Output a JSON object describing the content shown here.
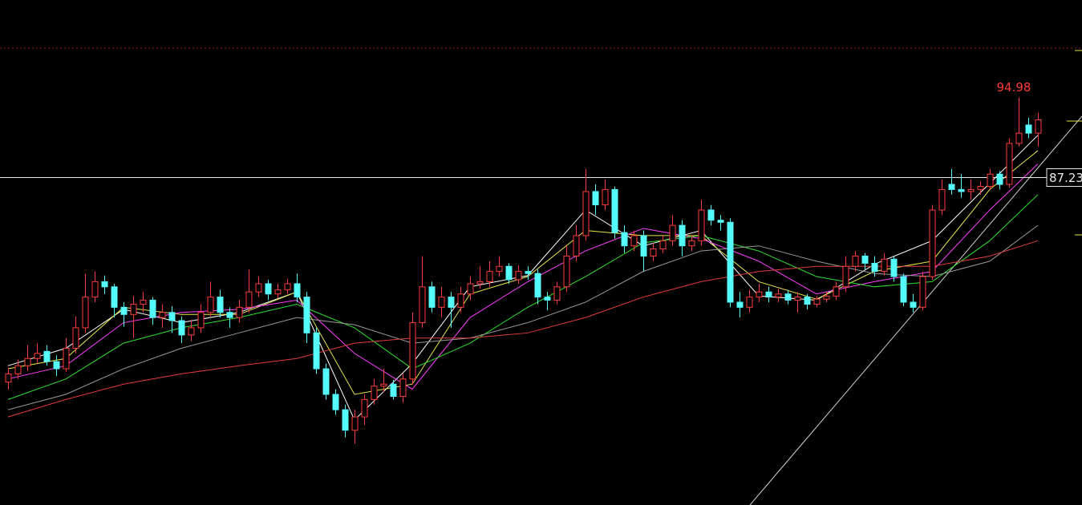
{
  "chart_data": {
    "type": "candlestick",
    "ylim": [
      55.2,
      104.5
    ],
    "up_color": "#ff3c3c",
    "down_color": "#54fcfc",
    "open": [
      67.2,
      68.0,
      68.8,
      69.5,
      70.2,
      69.2,
      68.5,
      70.5,
      72.5,
      75.5,
      77.0,
      76.5,
      74.5,
      73.8,
      74.8,
      75.2,
      73.5,
      74.0,
      73.2,
      71.8,
      72.5,
      74.0,
      75.5,
      74.0,
      73.5,
      74.5,
      76.0,
      76.8,
      75.8,
      76.2,
      76.8,
      75.5,
      72.0,
      68.5,
      66.0,
      64.5,
      62.5,
      63.8,
      65.5,
      66.8,
      67.0,
      65.8,
      67.5,
      73.0,
      76.5,
      74.5,
      75.5,
      74.5,
      75.8,
      76.8,
      77.0,
      78.0,
      78.5,
      77.2,
      78.0,
      77.8,
      75.5,
      75.2,
      76.5,
      79.5,
      81.5,
      85.8,
      84.5,
      86.0,
      81.8,
      80.5,
      81.5,
      79.5,
      80.2,
      81.0,
      82.5,
      80.5,
      81.0,
      84.0,
      83.0,
      82.8,
      75.0,
      74.5,
      75.5,
      76.0,
      75.5,
      75.8,
      75.2,
      75.5,
      74.8,
      75.3,
      75.6,
      76.5,
      78.5,
      79.5,
      78.8,
      78.0,
      79.2,
      77.5,
      75.0,
      74.5,
      77.5,
      84.0,
      86.5,
      86.0,
      85.8,
      86.0,
      86.3,
      87.5,
      86.5,
      90.5,
      92.3,
      91.5
    ],
    "high": [
      68.6,
      69.4,
      70.8,
      71.0,
      70.8,
      69.8,
      71.5,
      73.6,
      77.8,
      78.0,
      77.6,
      76.8,
      75.0,
      75.6,
      76.0,
      75.5,
      74.8,
      74.6,
      73.6,
      73.3,
      74.8,
      77.0,
      76.2,
      74.5,
      75.2,
      78.2,
      77.5,
      77.2,
      76.8,
      77.3,
      77.8,
      76.0,
      72.5,
      69.0,
      66.5,
      65.0,
      64.5,
      66.0,
      67.5,
      68.5,
      67.4,
      68.0,
      74.0,
      79.5,
      77.0,
      76.5,
      76.0,
      76.5,
      77.5,
      78.5,
      79.0,
      79.5,
      78.8,
      78.6,
      78.5,
      78.2,
      76.0,
      77.0,
      80.5,
      82.5,
      88.0,
      86.5,
      87.0,
      86.3,
      82.5,
      82.0,
      82.0,
      80.8,
      81.5,
      83.5,
      83.0,
      81.5,
      85.0,
      84.5,
      83.5,
      83.2,
      76.0,
      76.2,
      76.8,
      76.5,
      76.3,
      76.2,
      76.0,
      75.8,
      75.6,
      76.0,
      77.0,
      79.5,
      80.0,
      79.8,
      79.5,
      79.8,
      79.5,
      77.8,
      75.8,
      78.0,
      84.5,
      87.0,
      88.0,
      87.5,
      87.0,
      86.8,
      88.0,
      87.8,
      91.0,
      94.98,
      93.0,
      93.5
    ],
    "low": [
      66.5,
      67.5,
      68.3,
      69.0,
      68.8,
      67.8,
      68.2,
      70.0,
      72.0,
      75.0,
      75.8,
      73.5,
      72.6,
      71.5,
      74.0,
      72.8,
      72.5,
      72.0,
      71.0,
      71.2,
      72.0,
      73.6,
      73.5,
      72.5,
      73.0,
      74.0,
      75.5,
      75.2,
      75.4,
      75.8,
      75.0,
      71.0,
      68.0,
      65.5,
      64.0,
      61.8,
      61.2,
      63.0,
      65.0,
      66.2,
      65.5,
      65.2,
      67.0,
      72.5,
      74.0,
      73.5,
      72.5,
      74.0,
      75.2,
      76.3,
      76.5,
      77.5,
      76.8,
      76.8,
      77.2,
      74.8,
      74.2,
      74.8,
      76.0,
      79.0,
      81.0,
      83.5,
      84.0,
      81.2,
      79.8,
      80.0,
      78.0,
      79.0,
      79.8,
      80.5,
      79.5,
      80.0,
      80.5,
      82.5,
      82.0,
      74.5,
      73.5,
      74.0,
      75.0,
      75.0,
      75.0,
      74.8,
      74.0,
      74.3,
      74.5,
      75.0,
      75.2,
      76.0,
      78.0,
      78.2,
      77.5,
      77.6,
      77.0,
      74.6,
      74.0,
      74.2,
      77.2,
      83.5,
      85.5,
      85.2,
      85.0,
      85.5,
      86.0,
      86.0,
      86.2,
      90.2,
      91.0,
      90.2
    ],
    "close": [
      68.0,
      68.8,
      69.5,
      70.0,
      69.2,
      68.5,
      70.5,
      72.5,
      75.5,
      77.0,
      76.5,
      74.5,
      73.8,
      74.8,
      75.2,
      73.5,
      74.0,
      73.2,
      71.8,
      72.5,
      74.0,
      75.5,
      74.0,
      73.5,
      74.5,
      76.0,
      76.8,
      75.8,
      76.2,
      76.8,
      75.5,
      72.0,
      68.5,
      66.0,
      64.5,
      62.5,
      63.8,
      65.5,
      66.8,
      67.0,
      65.8,
      67.5,
      73.0,
      76.5,
      74.5,
      75.5,
      74.5,
      75.8,
      76.8,
      77.0,
      78.0,
      78.5,
      77.2,
      78.0,
      77.8,
      75.5,
      75.2,
      76.5,
      79.5,
      81.5,
      85.8,
      84.5,
      86.0,
      81.8,
      80.5,
      81.5,
      79.5,
      80.2,
      81.0,
      82.5,
      80.5,
      81.0,
      84.0,
      83.0,
      82.8,
      75.0,
      74.5,
      75.5,
      76.0,
      75.5,
      75.8,
      75.2,
      75.5,
      74.8,
      75.3,
      75.6,
      76.5,
      78.5,
      79.5,
      78.8,
      78.0,
      79.2,
      77.5,
      75.0,
      74.5,
      77.5,
      84.0,
      86.0,
      86.0,
      85.8,
      86.0,
      86.3,
      87.5,
      86.5,
      90.5,
      91.5,
      91.5,
      92.8
    ],
    "series": [
      {
        "color": "#ffffff",
        "x": [
          0,
          6,
          12,
          18,
          24,
          30,
          36,
          42,
          48,
          54,
          60,
          66,
          72,
          78,
          84,
          90,
          96,
          102,
          107
        ],
        "values": [
          68.8,
          70.5,
          74.3,
          73,
          74,
          76,
          63.5,
          69,
          76.5,
          77.6,
          84,
          80.5,
          82,
          75.6,
          75.2,
          78.7,
          81,
          86.6,
          91.3
        ]
      },
      {
        "color": "#e8e84a",
        "x": [
          0,
          6,
          12,
          18,
          24,
          30,
          36,
          42,
          48,
          54,
          60,
          66,
          72,
          78,
          84,
          90,
          96,
          102,
          107
        ],
        "values": [
          68.5,
          69.5,
          74.5,
          73.8,
          73.8,
          76,
          66,
          67,
          75.8,
          77.5,
          82,
          81.5,
          81.5,
          77,
          75.3,
          78,
          79,
          86,
          89.8
        ]
      },
      {
        "color": "#ff40ff",
        "x": [
          0,
          6,
          12,
          18,
          24,
          30,
          36,
          42,
          48,
          54,
          60,
          66,
          72,
          78,
          84,
          90,
          96,
          102,
          107
        ],
        "values": [
          67.5,
          68.8,
          73,
          74,
          74.3,
          75.2,
          70,
          66.5,
          73.5,
          77,
          80,
          82.2,
          81.2,
          79,
          75.8,
          77,
          78,
          84,
          88.5
        ]
      },
      {
        "color": "#30e030",
        "x": [
          0,
          6,
          12,
          18,
          24,
          30,
          36,
          42,
          48,
          54,
          60,
          66,
          72,
          78,
          84,
          90,
          96,
          102,
          107
        ],
        "values": [
          65.5,
          67.5,
          71,
          72.5,
          73.5,
          74.8,
          72.5,
          68.5,
          71,
          74.5,
          77.5,
          80.8,
          81.5,
          80,
          77.5,
          76.5,
          77,
          81,
          85.5
        ]
      },
      {
        "color": "#9a9a9a",
        "x": [
          0,
          6,
          12,
          18,
          24,
          30,
          36,
          42,
          48,
          54,
          60,
          66,
          72,
          78,
          84,
          90,
          96,
          102,
          107
        ],
        "values": [
          64.5,
          66,
          68.5,
          70.5,
          72,
          73.5,
          72.8,
          71,
          71.5,
          73,
          75,
          78,
          80,
          80.5,
          79,
          77.8,
          77.5,
          79,
          82.5
        ]
      },
      {
        "color": "#e03c3c",
        "x": [
          0,
          6,
          12,
          18,
          24,
          30,
          36,
          42,
          48,
          54,
          60,
          66,
          72,
          78,
          84,
          90,
          96,
          102,
          107
        ],
        "values": [
          63.8,
          65.5,
          67,
          68,
          68.8,
          69.5,
          71,
          71.5,
          71.5,
          72,
          73.5,
          75.5,
          77,
          78,
          78.5,
          78.5,
          78.5,
          79.5,
          81
        ]
      }
    ],
    "hline": 87.23
  }
}
